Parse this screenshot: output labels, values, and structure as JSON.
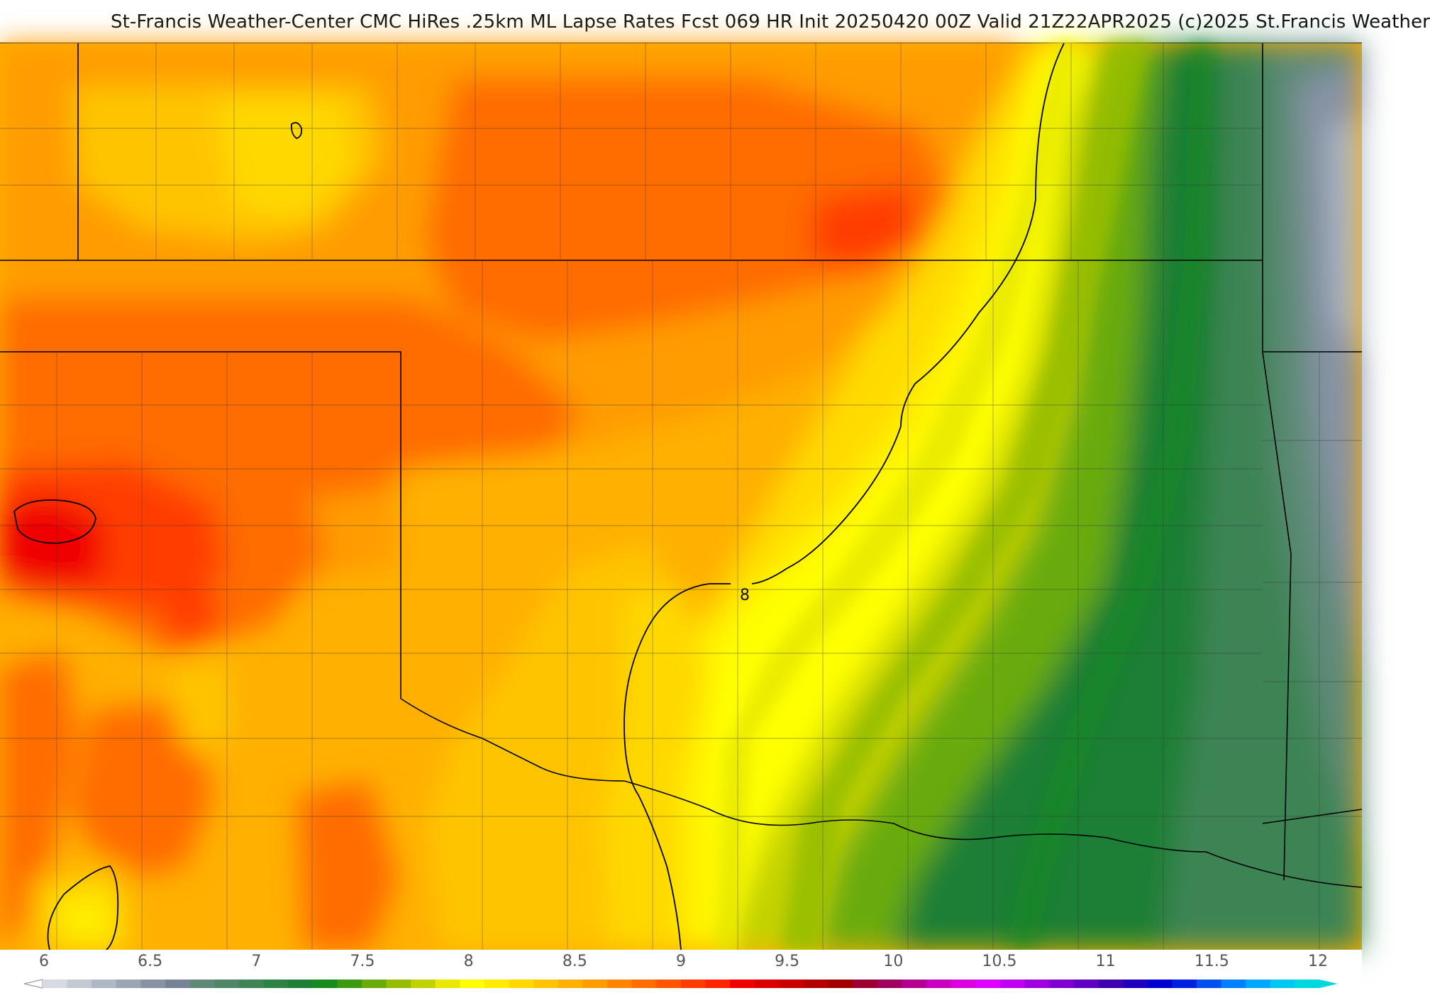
{
  "title": "St-Francis Weather-Center CMC HiRes .25km ML Lapse Rates  Fcst 069 HR Init 20250420 00Z  Valid 21Z22APR2025    (c)2025 St.Francis Weather",
  "contour_label": "8",
  "legend": {
    "ticks": [
      "6",
      "6.5",
      "7",
      "7.5",
      "8",
      "8.5",
      "9",
      "9.5",
      "10",
      "10.5",
      "11",
      "11.5",
      "12"
    ],
    "range": [
      6,
      12
    ],
    "colors": [
      "#d6dbe2",
      "#c2c9d3",
      "#aeb7c4",
      "#9aa5b5",
      "#8793a5",
      "#748496",
      "#5f8a78",
      "#4f8766",
      "#3e8455",
      "#2d8244",
      "#1f7f34",
      "#198a1f",
      "#3d9a10",
      "#69ab08",
      "#94bd04",
      "#c2d100",
      "#e8e800",
      "#ffff00",
      "#ffec00",
      "#ffd800",
      "#ffc400",
      "#ffb000",
      "#ff9c00",
      "#ff8400",
      "#ff6c00",
      "#ff5400",
      "#ff3c00",
      "#ff2400",
      "#f00000",
      "#dc0000",
      "#c80000",
      "#b40000",
      "#a00000",
      "#9c0030",
      "#a00060",
      "#b40090",
      "#c800c0",
      "#dc00e0",
      "#e000ff",
      "#c000f0",
      "#a000e0",
      "#8000d0",
      "#6000c0",
      "#4000b0",
      "#2000c0",
      "#0000d0",
      "#0020e0",
      "#0050f0",
      "#0080ff",
      "#00a8ff",
      "#00c8f0",
      "#00d8e0"
    ]
  },
  "colors": {
    "yellow": "#ffff00",
    "light_orange": "#ffc400",
    "orange": "#ff9c00",
    "dark_orange": "#ff6c00",
    "red_orange": "#ff3c00",
    "red": "#f00000",
    "lime": "#c2d100",
    "light_green": "#69ab08",
    "green": "#1f7f34",
    "dark_green": "#3e8455",
    "gray_green": "#5f8a78",
    "slate": "#8793a5",
    "pale": "#aeb7c4"
  }
}
